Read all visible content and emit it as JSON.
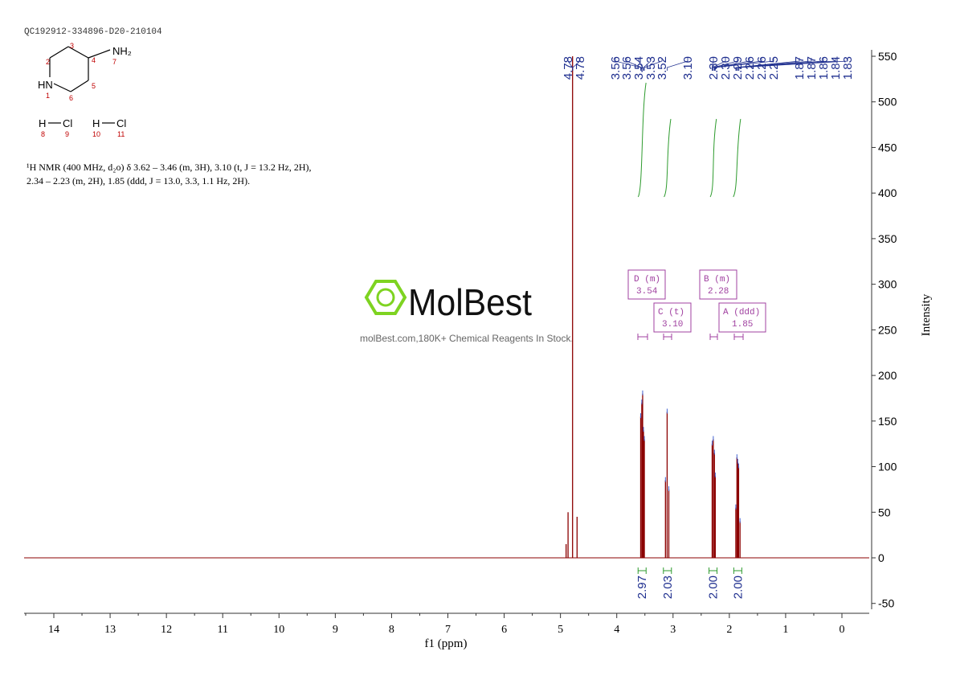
{
  "sample_id": "QC192912-334896-D20-210104",
  "structure": {
    "nh2_label": "NH₂",
    "hn_label": "HN",
    "numbers": [
      "1",
      "2",
      "3",
      "4",
      "5",
      "6",
      "7"
    ],
    "hcl_pairs": [
      {
        "h": "H",
        "cl": "Cl",
        "h_num": "8",
        "cl_num": "9"
      },
      {
        "h": "H",
        "cl": "Cl",
        "h_num": "10",
        "cl_num": "11"
      }
    ]
  },
  "nmr_text": {
    "line1": "¹H NMR (400 MHz, d₂o) δ 3.62 – 3.46 (m, 3H), 3.10 (t, J = 13.2 Hz, 2H),",
    "line2": "2.34 – 2.23 (m, 2H), 1.85 (ddd, J = 13.0, 3.3, 1.1 Hz, 2H)."
  },
  "watermark": {
    "brand": "MolBest",
    "tagline": "molBest.com,180K+ Chemical Reagents In Stock."
  },
  "multiplets": [
    {
      "letter": "D",
      "type": "m",
      "shift": "3.54"
    },
    {
      "letter": "C",
      "type": "t",
      "shift": "3.10"
    },
    {
      "letter": "B",
      "type": "m",
      "shift": "2.28"
    },
    {
      "letter": "A",
      "type": "ddd",
      "shift": "1.85"
    }
  ],
  "colors": {
    "spectrum": "#8b0000",
    "peak_labels": "#1f2f8f",
    "integral": "#2e9b2e",
    "multiplet_box": "#a040a0",
    "logo_green": "#7ed321",
    "axis": "#333333"
  },
  "chart_data": {
    "type": "line",
    "xlabel": "f1 (ppm)",
    "ylabel": "Intensity",
    "xlim": [
      14.5,
      -0.5
    ],
    "x_reversed": true,
    "ylim": [
      -55,
      560
    ],
    "x_ticks": [
      "14",
      "13",
      "12",
      "11",
      "10",
      "9",
      "8",
      "7",
      "6",
      "5",
      "4",
      "3",
      "2",
      "1",
      "0"
    ],
    "y_ticks": [
      "-50",
      "0",
      "50",
      "100",
      "150",
      "200",
      "250",
      "300",
      "350",
      "400",
      "450",
      "500",
      "550"
    ],
    "peak_labels": [
      "4.78",
      "4.78",
      "3.56",
      "3.56",
      "3.54",
      "3.53",
      "3.52",
      "3.10",
      "2.30",
      "2.30",
      "2.29",
      "2.26",
      "2.26",
      "2.25",
      "1.87",
      "1.87",
      "1.86",
      "1.84",
      "1.83"
    ],
    "integrals": [
      {
        "value": "2.97",
        "x": 3.55
      },
      {
        "value": "2.03",
        "x": 3.1
      },
      {
        "value": "2.00",
        "x": 2.29
      },
      {
        "value": "2.00",
        "x": 1.85
      }
    ],
    "peaks": [
      {
        "ppm": 4.785,
        "intensity": 550
      },
      {
        "ppm": 4.865,
        "intensity": 50
      },
      {
        "ppm": 4.705,
        "intensity": 45
      },
      {
        "ppm": 4.9,
        "intensity": 15
      },
      {
        "ppm": 3.575,
        "intensity": 155
      },
      {
        "ppm": 3.555,
        "intensity": 170
      },
      {
        "ppm": 3.54,
        "intensity": 180
      },
      {
        "ppm": 3.525,
        "intensity": 140
      },
      {
        "ppm": 3.51,
        "intensity": 130
      },
      {
        "ppm": 3.135,
        "intensity": 85
      },
      {
        "ppm": 3.105,
        "intensity": 160
      },
      {
        "ppm": 3.075,
        "intensity": 75
      },
      {
        "ppm": 2.305,
        "intensity": 125
      },
      {
        "ppm": 2.285,
        "intensity": 130
      },
      {
        "ppm": 2.265,
        "intensity": 115
      },
      {
        "ppm": 2.25,
        "intensity": 90
      },
      {
        "ppm": 1.885,
        "intensity": 55
      },
      {
        "ppm": 1.865,
        "intensity": 110
      },
      {
        "ppm": 1.85,
        "intensity": 105
      },
      {
        "ppm": 1.835,
        "intensity": 100
      },
      {
        "ppm": 1.81,
        "intensity": 40
      }
    ]
  }
}
